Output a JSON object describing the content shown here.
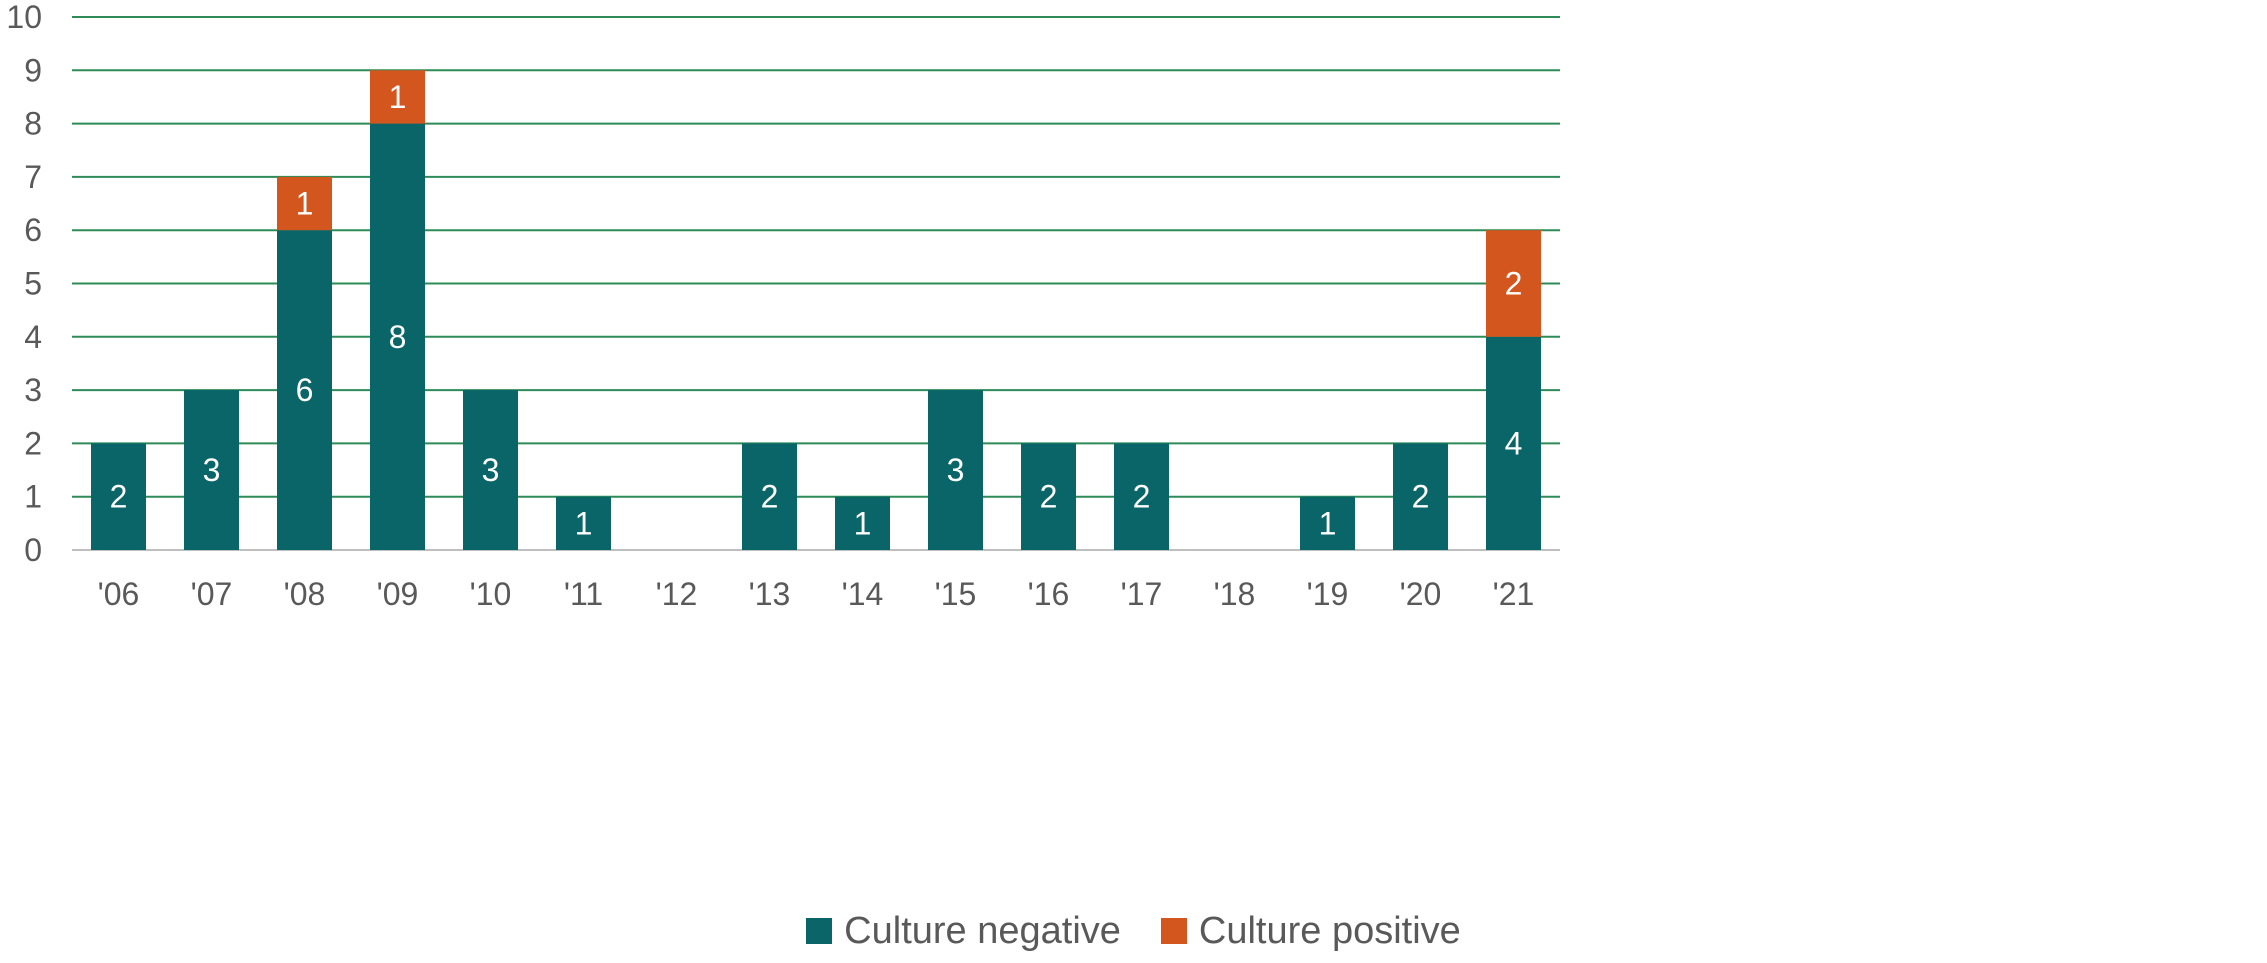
{
  "chart_data": {
    "type": "bar",
    "stacked": true,
    "categories": [
      "'06",
      "'07",
      "'08",
      "'09",
      "'10",
      "'11",
      "'12",
      "'13",
      "'14",
      "'15",
      "'16",
      "'17",
      "'18",
      "'19",
      "'20",
      "'21"
    ],
    "series": [
      {
        "name": "Culture negative",
        "color": "#0a6569",
        "values": [
          2,
          3,
          6,
          8,
          3,
          1,
          0,
          2,
          1,
          3,
          2,
          2,
          0,
          1,
          2,
          4
        ]
      },
      {
        "name": "Culture positive",
        "color": "#d4561f",
        "values": [
          0,
          0,
          1,
          1,
          0,
          0,
          0,
          0,
          0,
          0,
          0,
          0,
          0,
          0,
          0,
          2
        ]
      }
    ],
    "y_ticks": [
      "0",
      "1",
      "2",
      "3",
      "4",
      "5",
      "6",
      "7",
      "8",
      "9",
      "10"
    ],
    "ylim": [
      0,
      10
    ],
    "title": "",
    "xlabel": "",
    "ylabel": "",
    "grid": true,
    "grid_color": "#2e8b57",
    "legend_position": "bottom",
    "data_labels": true
  }
}
